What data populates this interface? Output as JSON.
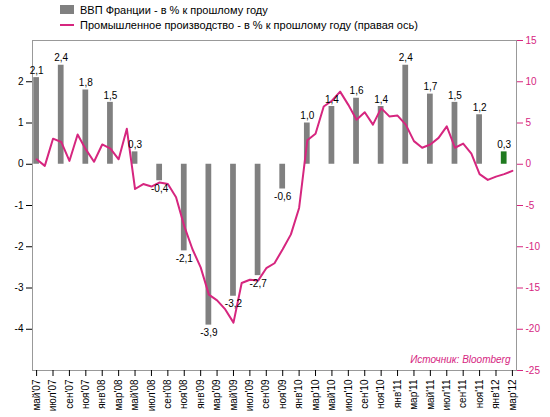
{
  "chart_data": {
    "type": "bar",
    "categories": [
      "май'07",
      null,
      "июл'07",
      null,
      "сен'07",
      null,
      "ноя'07",
      null,
      "янв'08",
      null,
      "мар'08",
      null,
      "май'08",
      null,
      "июл'08",
      null,
      "сен'08",
      null,
      "ноя'08",
      null,
      "янв'09",
      null,
      "мар'09",
      null,
      "май'09",
      null,
      "июл'09",
      null,
      "сен'09",
      null,
      "ноя'09",
      null,
      "янв'10",
      null,
      "мар'10",
      null,
      "май'10",
      null,
      "июл'10",
      null,
      "сен'10",
      null,
      "ноя'10",
      null,
      "янв'11",
      null,
      "мар'11",
      null,
      "май'11",
      null,
      "июл'11",
      null,
      "сен'11",
      null,
      "ноя'11",
      null,
      "янв'12",
      null,
      "мар'12"
    ],
    "series": [
      {
        "name": "ВВП Франции - в % к прошлому году",
        "type": "bar",
        "axis": "y",
        "color": "#808080",
        "data_labels": true,
        "values": [
          2.1,
          null,
          null,
          2.4,
          null,
          null,
          1.8,
          null,
          null,
          1.5,
          null,
          null,
          0.3,
          null,
          null,
          -0.4,
          null,
          null,
          -2.1,
          null,
          null,
          -3.9,
          null,
          null,
          -3.2,
          null,
          null,
          -2.7,
          null,
          null,
          -0.6,
          null,
          null,
          1.0,
          null,
          null,
          1.4,
          null,
          null,
          1.6,
          null,
          null,
          1.4,
          null,
          null,
          2.4,
          null,
          null,
          1.7,
          null,
          null,
          1.5,
          null,
          null,
          1.2,
          null,
          null,
          0.3,
          null
        ],
        "value_labels": [
          "2,1",
          null,
          null,
          "2,4",
          null,
          null,
          "1,8",
          null,
          null,
          "1,5",
          null,
          null,
          "0,3",
          null,
          null,
          "-0,4",
          null,
          null,
          "-2,1",
          null,
          null,
          "-3,9",
          null,
          null,
          "-3,2",
          null,
          null,
          "-2,7",
          null,
          null,
          "-0,6",
          null,
          null,
          "1,0",
          null,
          null,
          "1,4",
          null,
          null,
          "1,6",
          null,
          null,
          "1,4",
          null,
          null,
          "2,4",
          null,
          null,
          "1,7",
          null,
          null,
          "1,5",
          null,
          null,
          "1,2",
          null,
          null,
          "0,3",
          null
        ],
        "colors": [
          "#808080",
          null,
          null,
          "#808080",
          null,
          null,
          "#808080",
          null,
          null,
          "#808080",
          null,
          null,
          "#808080",
          null,
          null,
          "#808080",
          null,
          null,
          "#808080",
          null,
          null,
          "#808080",
          null,
          null,
          "#808080",
          null,
          null,
          "#808080",
          null,
          null,
          "#808080",
          null,
          null,
          "#808080",
          null,
          null,
          "#808080",
          null,
          null,
          "#808080",
          null,
          null,
          "#808080",
          null,
          null,
          "#808080",
          null,
          null,
          "#808080",
          null,
          null,
          "#808080",
          null,
          null,
          "#808080",
          null,
          null,
          "#1f7a1f",
          null
        ]
      },
      {
        "name": "Промышленное производство - в % к прошлому году (правая ось)",
        "type": "line",
        "axis": "y2",
        "color": "#d6267f",
        "values": [
          0.6,
          -0.2,
          3.1,
          2.7,
          0.4,
          3.6,
          1.8,
          0.3,
          2.4,
          1.9,
          0.6,
          4.3,
          -3.0,
          -2.4,
          -2.7,
          -2.2,
          -2.4,
          -4.0,
          -7.5,
          -10.3,
          -12.5,
          -15.8,
          -16.5,
          -17.6,
          -19.2,
          -14.4,
          -14.0,
          -14.1,
          -12.6,
          -12.0,
          -10.3,
          -8.5,
          -5.3,
          2.9,
          3.7,
          7.0,
          7.7,
          8.8,
          7.2,
          5.4,
          6.3,
          4.8,
          6.8,
          5.8,
          5.9,
          4.8,
          2.8,
          2.0,
          2.4,
          3.2,
          4.6,
          2.0,
          2.5,
          1.3,
          -1.2,
          -1.9,
          -1.5,
          -1.2,
          -0.8
        ]
      }
    ],
    "ylim": [
      -5,
      3
    ],
    "yticks": [
      -4,
      -3,
      -2,
      -1,
      0,
      1,
      2
    ],
    "y2lim": [
      -25,
      15
    ],
    "y2ticks": [
      -25,
      -20,
      -15,
      -10,
      -5,
      0,
      5,
      10,
      15
    ],
    "source": "Источник: Bloomberg",
    "grid": false,
    "legend": "top-left"
  }
}
